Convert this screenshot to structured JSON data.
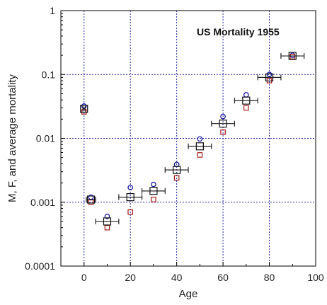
{
  "chart_data": {
    "type": "scatter",
    "title": "US Mortality 1955",
    "xlabel": "Age",
    "ylabel": "M, F, and average mortality",
    "xlim": [
      -10,
      100
    ],
    "ylim": [
      0.0001,
      1
    ],
    "y_scale": "log",
    "grid": true,
    "x_ticks": [
      0,
      20,
      40,
      60,
      80,
      100
    ],
    "x_tick_labels": [
      "0",
      "20",
      "40",
      "60",
      "80",
      "100"
    ],
    "y_ticks": [
      0.0001,
      0.001,
      0.01,
      0.1,
      1
    ],
    "y_tick_labels": [
      "0.0001",
      "0.001",
      "0.01",
      "0.1",
      "1"
    ],
    "series": [
      {
        "marker": "open-circle",
        "color": "#1a1aa6",
        "x": [
          0,
          3,
          10,
          20,
          30,
          40,
          50,
          60,
          70,
          80,
          90
        ],
        "y": [
          0.032,
          0.0012,
          0.0006,
          0.0017,
          0.0019,
          0.0039,
          0.0098,
          0.022,
          0.048,
          0.1,
          0.2
        ]
      },
      {
        "marker": "open-square-small",
        "color": "#a61a1a",
        "x": [
          0,
          3,
          10,
          20,
          30,
          40,
          50,
          60,
          70,
          80,
          90
        ],
        "y": [
          0.026,
          0.001,
          0.0004,
          0.0007,
          0.0011,
          0.0024,
          0.0055,
          0.0125,
          0.03,
          0.08,
          0.19
        ]
      },
      {
        "marker": "open-square-large",
        "color": "#111111",
        "x": [
          0,
          3,
          10,
          20,
          30,
          40,
          50,
          60,
          70,
          80,
          90
        ],
        "y": [
          0.029,
          0.0011,
          0.0005,
          0.0012,
          0.0015,
          0.0032,
          0.0075,
          0.017,
          0.039,
          0.09,
          0.195
        ],
        "x_err": [
          0.5,
          2,
          5,
          5,
          5,
          5,
          5,
          5,
          5,
          5,
          5
        ]
      }
    ]
  }
}
